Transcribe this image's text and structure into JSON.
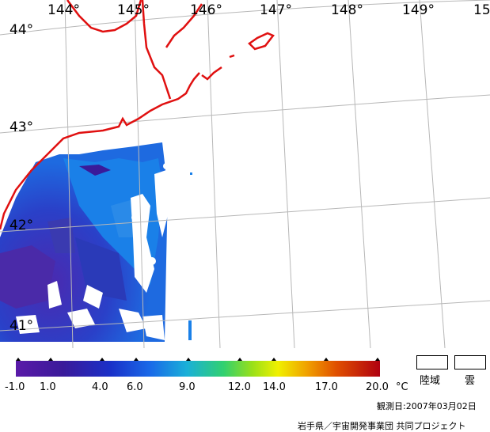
{
  "map": {
    "longitude_labels": [
      "144°",
      "145°",
      "146°",
      "147°",
      "148°",
      "149°",
      "15"
    ],
    "latitude_labels": [
      "44°",
      "43°",
      "42°",
      "41°"
    ],
    "colors": {
      "coastline": "#e01010",
      "graticule": "#b8b8b8",
      "cloud_mask": "#ffffff"
    }
  },
  "legend": {
    "ticks": [
      "-1.0",
      "1.0",
      "4.0",
      "6.0",
      "9.0",
      "12.0",
      "14.0",
      "17.0",
      "20.0"
    ],
    "unit": "°C",
    "land_label": "陸域",
    "cloud_label": "雲"
  },
  "footer": {
    "observation_date": "観測日:2007年03月02日",
    "credit": "岩手県／宇宙開発事業団 共同プロジェクト"
  }
}
